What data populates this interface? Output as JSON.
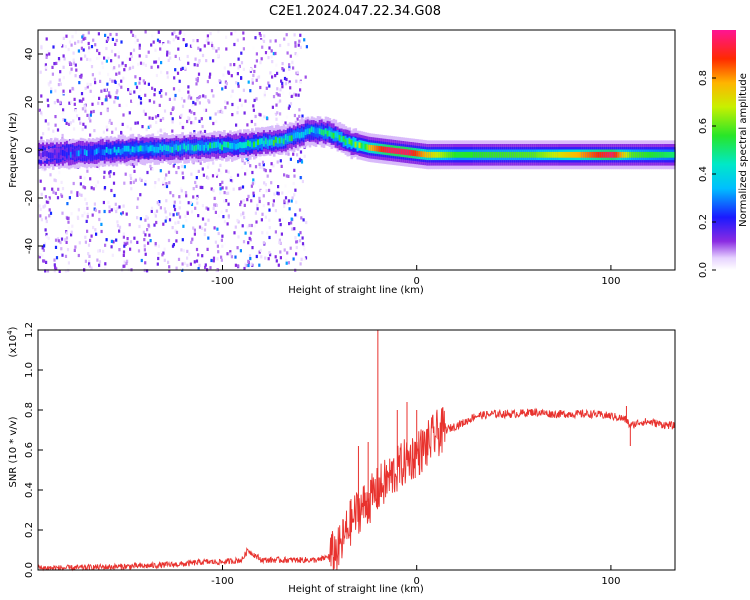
{
  "title": "C2E1.2024.047.22.34.G08",
  "colors": {
    "snr_line": "#e8322e",
    "background": "#ffffff",
    "axis": "#000000"
  },
  "chart_data": [
    {
      "type": "heatmap",
      "xlabel": "Height of straight line (km)",
      "ylabel": "Frequency (Hz)",
      "xlim": [
        -195,
        133
      ],
      "ylim": [
        -50,
        50
      ],
      "x_ticks": [
        -100,
        0,
        100
      ],
      "x_tick_labels": [
        "-100",
        "0",
        "100"
      ],
      "y_ticks": [
        -40,
        -20,
        0,
        20,
        40
      ],
      "y_tick_labels": [
        "-40",
        "-20",
        "0",
        "20",
        "40"
      ],
      "colorbar": {
        "label": "Normalized spectral amplitude",
        "range": [
          0,
          1
        ],
        "ticks": [
          0.0,
          0.2,
          0.4,
          0.6,
          0.8
        ],
        "tick_labels": [
          "0.0",
          "0.2",
          "0.4",
          "0.6",
          "0.8"
        ],
        "colormap": "rainbow (white→violet→blue→cyan→green→yellow→orange→red→magenta)"
      },
      "noise_region": {
        "x_range": [
          -195,
          -57
        ],
        "y_range": [
          -50,
          50
        ],
        "amplitude": 0.15
      },
      "center_line": [
        {
          "x": -195,
          "f": -2,
          "amp": 0.15
        },
        {
          "x": -170,
          "f": -1,
          "amp": 0.35
        },
        {
          "x": -150,
          "f": 0,
          "amp": 0.45
        },
        {
          "x": -120,
          "f": 1,
          "amp": 0.5
        },
        {
          "x": -90,
          "f": 2,
          "amp": 0.5
        },
        {
          "x": -70,
          "f": 4,
          "amp": 0.55
        },
        {
          "x": -55,
          "f": 8,
          "amp": 0.45
        },
        {
          "x": -45,
          "f": 7,
          "amp": 0.55
        },
        {
          "x": -35,
          "f": 3,
          "amp": 0.6
        },
        {
          "x": -25,
          "f": 1,
          "amp": 0.75
        },
        {
          "x": -15,
          "f": 0,
          "amp": 0.95
        },
        {
          "x": -5,
          "f": -1,
          "amp": 0.95
        },
        {
          "x": 5,
          "f": -2,
          "amp": 0.75
        },
        {
          "x": 20,
          "f": -2,
          "amp": 0.55
        },
        {
          "x": 60,
          "f": -2,
          "amp": 0.6
        },
        {
          "x": 85,
          "f": -2,
          "amp": 0.8
        },
        {
          "x": 100,
          "f": -2,
          "amp": 0.95
        },
        {
          "x": 110,
          "f": -2,
          "amp": 0.6
        },
        {
          "x": 133,
          "f": -2,
          "amp": 0.5
        }
      ]
    },
    {
      "type": "line",
      "xlabel": "Height of straight line (km)",
      "ylabel": "SNR (10 * v/v)",
      "y_multiplier_label": "(x10",
      "y_multiplier_exp": "4",
      "y_multiplier_close": ")",
      "xlim": [
        -195,
        133
      ],
      "ylim": [
        0,
        1.2
      ],
      "x_ticks": [
        -100,
        0,
        100
      ],
      "x_tick_labels": [
        "-100",
        "0",
        "100"
      ],
      "y_ticks": [
        0.0,
        0.2,
        0.4,
        0.6,
        0.8,
        1.0,
        1.2
      ],
      "y_tick_labels": [
        "0.0",
        "0.2",
        "0.4",
        "0.6",
        "0.8",
        "1.0",
        "1.2"
      ],
      "series": [
        {
          "x": [
            -195,
            -180,
            -160,
            -140,
            -120,
            -110,
            -100,
            -90,
            -87,
            -80,
            -70,
            -60,
            -50,
            -45,
            -40,
            -35,
            -30,
            -25,
            -20,
            -15,
            -10,
            -5,
            0,
            5,
            10,
            15,
            20,
            25,
            30,
            40,
            50,
            60,
            70,
            80,
            90,
            100,
            105,
            108,
            110,
            115,
            120,
            125,
            133
          ],
          "y": [
            0.01,
            0.01,
            0.015,
            0.02,
            0.03,
            0.04,
            0.04,
            0.05,
            0.1,
            0.05,
            0.05,
            0.05,
            0.05,
            0.07,
            0.1,
            0.22,
            0.3,
            0.34,
            0.4,
            0.45,
            0.5,
            0.55,
            0.58,
            0.62,
            0.68,
            0.7,
            0.72,
            0.74,
            0.77,
            0.78,
            0.78,
            0.79,
            0.78,
            0.78,
            0.78,
            0.77,
            0.76,
            0.75,
            0.72,
            0.74,
            0.74,
            0.73,
            0.72
          ]
        }
      ],
      "spikes": [
        {
          "x": -20,
          "y": 1.22
        },
        {
          "x": -30,
          "y": 0.62
        },
        {
          "x": -25,
          "y": 0.64
        },
        {
          "x": -10,
          "y": 0.8
        },
        {
          "x": -5,
          "y": 0.84
        },
        {
          "x": 0,
          "y": 0.8
        },
        {
          "x": 108,
          "y": 0.82
        },
        {
          "x": 110,
          "y": 0.62
        }
      ]
    }
  ]
}
